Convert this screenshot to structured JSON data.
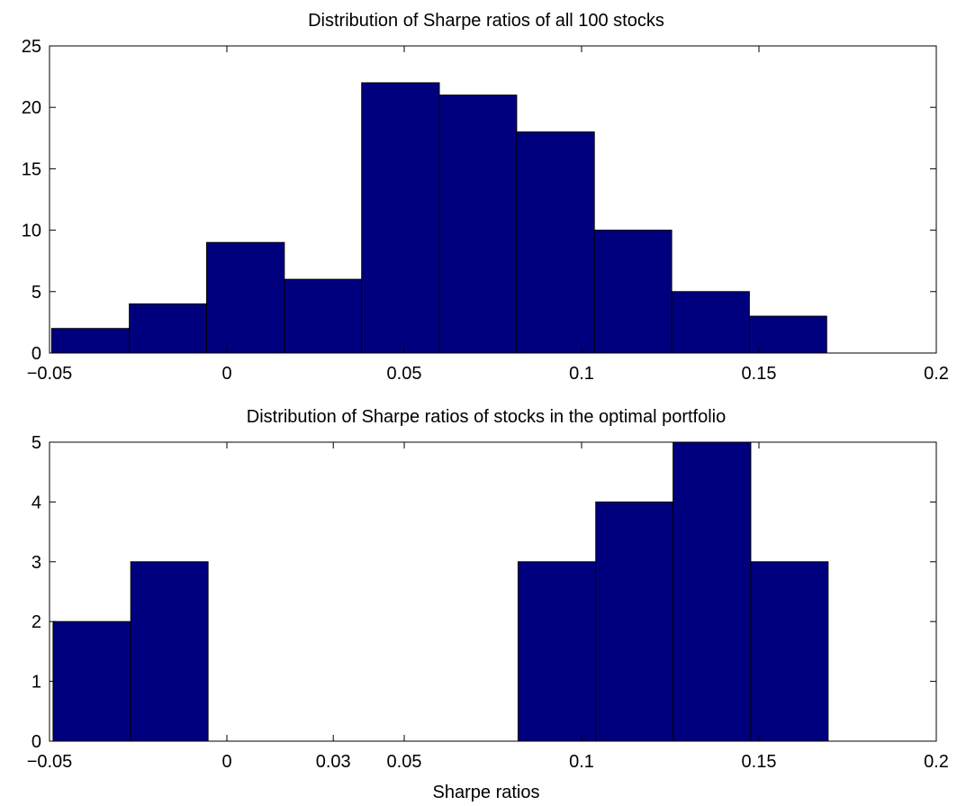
{
  "chart_data": [
    {
      "type": "bar",
      "title": "Distribution of Sharpe ratios of all 100 stocks",
      "xlabel": "",
      "ylabel": "",
      "xlim": [
        -0.05,
        0.2
      ],
      "ylim": [
        0,
        25
      ],
      "xticks": [
        -0.05,
        0,
        0.05,
        0.1,
        0.15,
        0.2
      ],
      "xtick_labels": [
        "−0.05",
        "0",
        "0.05",
        "0.1",
        "0.15",
        "0.2"
      ],
      "yticks": [
        0,
        5,
        10,
        15,
        20,
        25
      ],
      "ytick_labels": [
        "0",
        "5",
        "10",
        "15",
        "20",
        "25"
      ],
      "grid": false,
      "bar_color": "#00007f",
      "bins": [
        {
          "x0": -0.0494,
          "x1": -0.0275,
          "count": 2
        },
        {
          "x0": -0.0275,
          "x1": -0.0057,
          "count": 4
        },
        {
          "x0": -0.0057,
          "x1": 0.0162,
          "count": 9
        },
        {
          "x0": 0.0162,
          "x1": 0.038,
          "count": 6
        },
        {
          "x0": 0.038,
          "x1": 0.0599,
          "count": 22
        },
        {
          "x0": 0.0599,
          "x1": 0.0817,
          "count": 21
        },
        {
          "x0": 0.0817,
          "x1": 0.1036,
          "count": 18
        },
        {
          "x0": 0.1036,
          "x1": 0.1254,
          "count": 10
        },
        {
          "x0": 0.1254,
          "x1": 0.1473,
          "count": 5
        },
        {
          "x0": 0.1473,
          "x1": 0.1691,
          "count": 3
        }
      ]
    },
    {
      "type": "bar",
      "title": "Distribution of Sharpe ratios of stocks in the optimal portfolio",
      "xlabel": "Sharpe ratios",
      "ylabel": "",
      "xlim": [
        -0.05,
        0.2
      ],
      "ylim": [
        0,
        5
      ],
      "xticks": [
        -0.05,
        0,
        0.03,
        0.05,
        0.1,
        0.15,
        0.2
      ],
      "xtick_labels": [
        "−0.05",
        "0",
        "0.03",
        "0.05",
        "0.1",
        "0.15",
        "0.2"
      ],
      "yticks": [
        0,
        1,
        2,
        3,
        4,
        5
      ],
      "ytick_labels": [
        "0",
        "1",
        "2",
        "3",
        "4",
        "5"
      ],
      "grid": false,
      "bar_color": "#00007f",
      "bins": [
        {
          "x0": -0.049,
          "x1": -0.0271,
          "count": 2
        },
        {
          "x0": -0.0271,
          "x1": -0.0053,
          "count": 3
        },
        {
          "x0": -0.0053,
          "x1": 0.0166,
          "count": 0
        },
        {
          "x0": 0.0166,
          "x1": 0.0384,
          "count": 0
        },
        {
          "x0": 0.0384,
          "x1": 0.0603,
          "count": 0
        },
        {
          "x0": 0.0603,
          "x1": 0.0821,
          "count": 0
        },
        {
          "x0": 0.0821,
          "x1": 0.104,
          "count": 3
        },
        {
          "x0": 0.104,
          "x1": 0.1258,
          "count": 4
        },
        {
          "x0": 0.1258,
          "x1": 0.1477,
          "count": 5
        },
        {
          "x0": 0.1477,
          "x1": 0.1695,
          "count": 3
        }
      ]
    }
  ]
}
